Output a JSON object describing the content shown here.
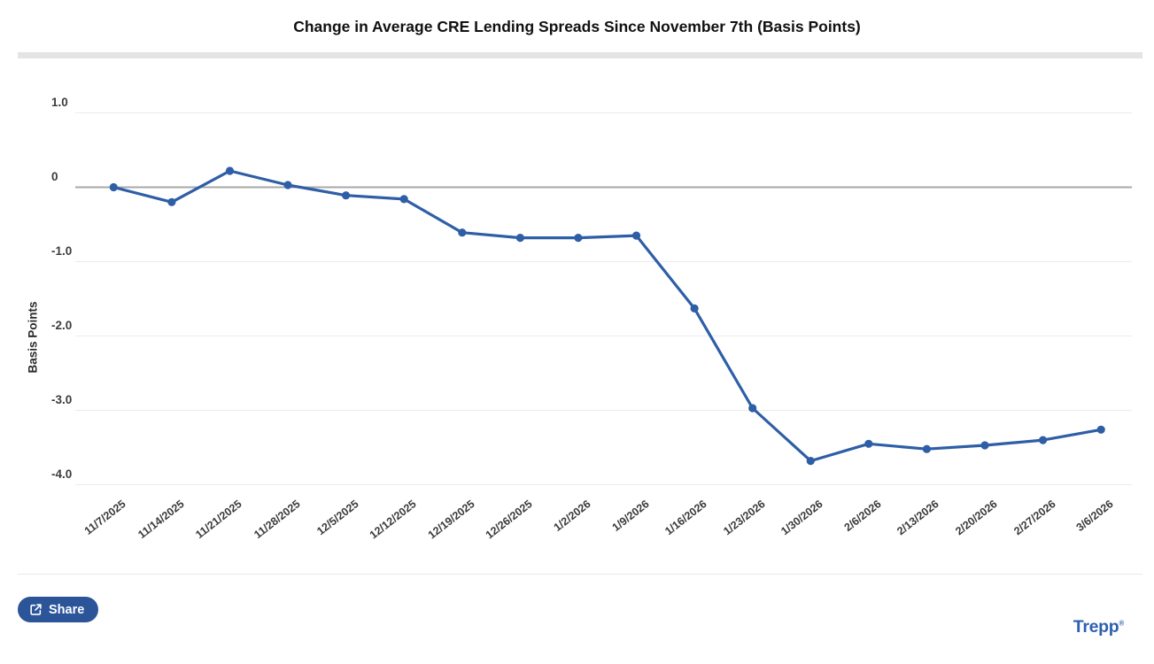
{
  "chart_data": {
    "type": "line",
    "title": "Change in Average CRE Lending Spreads Since November 7th (Basis Points)",
    "xlabel": "",
    "ylabel": "Basis Points",
    "categories": [
      "11/7/2025",
      "11/14/2025",
      "11/21/2025",
      "11/28/2025",
      "12/5/2025",
      "12/12/2025",
      "12/19/2025",
      "12/26/2025",
      "1/2/2026",
      "1/9/2026",
      "1/16/2026",
      "1/23/2026",
      "1/30/2026",
      "2/6/2026",
      "2/13/2026",
      "2/20/2026",
      "2/27/2026",
      "3/6/2026"
    ],
    "series": [
      {
        "name": "Change in Average CRE Lending Spreads",
        "values": [
          0.0,
          -0.2,
          0.22,
          0.03,
          -0.11,
          -0.16,
          -0.61,
          -0.68,
          -0.68,
          -0.65,
          -1.63,
          -2.97,
          -3.68,
          -3.45,
          -3.52,
          -3.47,
          -3.4,
          -3.26
        ]
      }
    ],
    "ylim": [
      -4.0,
      1.0
    ],
    "yticks": [
      1.0,
      0,
      -1.0,
      -2.0,
      -3.0,
      -4.0
    ],
    "ytick_labels": [
      "1.0",
      "0",
      "-1.0",
      "-2.0",
      "-3.0",
      "-4.0"
    ],
    "grid": true,
    "legend": false,
    "line_color": "#2e5ea6"
  },
  "footer": {
    "share_label": "Share",
    "logo_text": "Trepp",
    "logo_mark": "®"
  },
  "colors": {
    "accent_blue": "#2e5ea6",
    "button_blue": "#2b5499",
    "logo_blue": "#2d5fb0",
    "zero_line": "#a8a8a8",
    "gridline": "#ececec",
    "divider": "#e4e4e4"
  }
}
